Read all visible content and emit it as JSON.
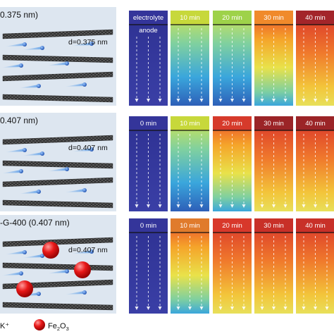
{
  "rows": [
    {
      "title": "0.375 nm)",
      "spacing_label": "d=0.375 nm",
      "has_particles": false,
      "panels": [
        {
          "label": "electrolyte",
          "sublabel": "anode",
          "color": "#34359a",
          "stage": 0
        },
        {
          "label": "10 min",
          "color": "#c7d83b",
          "stage": 1
        },
        {
          "label": "20 min",
          "color": "#9ed24a",
          "stage": 1
        },
        {
          "label": "30 min",
          "color": "#f08a2b",
          "stage": 2
        },
        {
          "label": "40 min",
          "color": "#a3252a",
          "stage": 3
        }
      ]
    },
    {
      "title": "0.407 nm)",
      "spacing_label": "d=0.407 nm",
      "has_particles": false,
      "panels": [
        {
          "label": "0 min",
          "color": "#34359a",
          "stage": 0
        },
        {
          "label": "10 min",
          "color": "#c7d83b",
          "stage": 1
        },
        {
          "label": "20 min",
          "color": "#d63a2b",
          "stage": 2
        },
        {
          "label": "30 min",
          "color": "#9b2427",
          "stage": 3
        },
        {
          "label": "40 min",
          "color": "#9b2427",
          "stage": 3
        }
      ]
    },
    {
      "title": "-G-400 (0.407 nm)",
      "spacing_label": "d=0.407 nm",
      "has_particles": true,
      "panels": [
        {
          "label": "0 min",
          "color": "#34359a",
          "stage": 0
        },
        {
          "label": "10 min",
          "color": "#e07b2c",
          "stage": 2
        },
        {
          "label": "20 min",
          "color": "#d8382b",
          "stage": 3
        },
        {
          "label": "30 min",
          "color": "#c83028",
          "stage": 3
        },
        {
          "label": "40 min",
          "color": "#c83028",
          "stage": 3
        }
      ]
    }
  ],
  "legend": {
    "ion_label": "K⁺",
    "particle_label_main": "Fe",
    "particle_sub1": "2",
    "particle_mid": "O",
    "particle_sub2": "3"
  },
  "colors": {
    "panel_bg": "#dde6f0",
    "sheet": "#3a3a3a",
    "ion": "#2f6fd0",
    "particle": "#e01a1a",
    "blue_start": "#2e3192"
  }
}
